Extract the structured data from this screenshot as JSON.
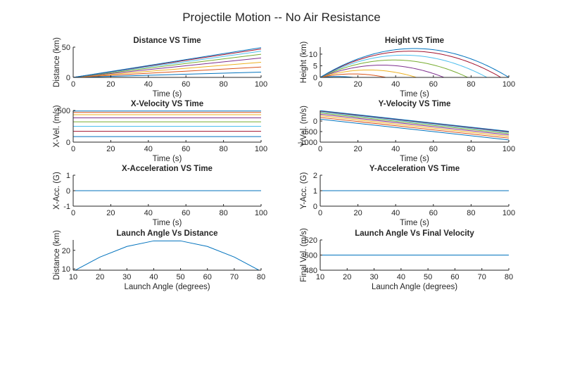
{
  "figure": {
    "suptitle": "Projectile Motion -- No Air Resistance"
  },
  "colors": [
    "#0072BD",
    "#D95319",
    "#EDB120",
    "#7E2F8E",
    "#77AC30",
    "#4DBEEE",
    "#A2142F",
    "#0072BD"
  ],
  "chart_data": [
    {
      "id": "distance-vs-time",
      "type": "line",
      "title": "Distance VS Time",
      "xlabel": "Time (s)",
      "ylabel": "Distance (km)",
      "xlim": [
        0,
        100
      ],
      "ylim": [
        0,
        50
      ],
      "xticks": [
        0,
        20,
        40,
        60,
        80,
        100
      ],
      "yticks": [
        0,
        50
      ],
      "grid": false,
      "series": [
        {
          "x": [
            0,
            100
          ],
          "y": [
            0,
            8.7
          ]
        },
        {
          "x": [
            0,
            100
          ],
          "y": [
            0,
            17.1
          ]
        },
        {
          "x": [
            0,
            100
          ],
          "y": [
            0,
            25
          ]
        },
        {
          "x": [
            0,
            100
          ],
          "y": [
            0,
            32.1
          ]
        },
        {
          "x": [
            0,
            100
          ],
          "y": [
            0,
            38.3
          ]
        },
        {
          "x": [
            0,
            100
          ],
          "y": [
            0,
            43.3
          ]
        },
        {
          "x": [
            0,
            100
          ],
          "y": [
            0,
            47
          ]
        },
        {
          "x": [
            0,
            100
          ],
          "y": [
            0,
            49.2
          ]
        }
      ]
    },
    {
      "id": "height-vs-time",
      "type": "line",
      "title": "Height VS Time",
      "xlabel": "Time (s)",
      "ylabel": "Height (km)",
      "xlim": [
        0,
        100
      ],
      "ylim": [
        0,
        13
      ],
      "xticks": [
        0,
        20,
        40,
        60,
        80,
        100
      ],
      "yticks": [
        0,
        5,
        10
      ],
      "grid": false,
      "series": [
        {
          "x": [
            0,
            17.7
          ],
          "y": [
            0,
            0.38
          ],
          "peak": 8.9
        },
        {
          "x": [
            0,
            34.9
          ],
          "y": [
            0,
            1.49
          ],
          "peak": 17.4
        },
        {
          "x": [
            0,
            51
          ],
          "y": [
            0,
            3.19
          ],
          "peak": 25.5
        },
        {
          "x": [
            0,
            65.5
          ],
          "y": [
            0,
            5.27
          ],
          "peak": 32.8
        },
        {
          "x": [
            0,
            78.1
          ],
          "y": [
            0,
            7.47
          ],
          "peak": 39.1
        },
        {
          "x": [
            0,
            88.3
          ],
          "y": [
            0,
            9.56
          ],
          "peak": 44.2
        },
        {
          "x": [
            0,
            95.9
          ],
          "y": [
            0,
            11.27
          ],
          "peak": 47.9
        },
        {
          "x": [
            0,
            100
          ],
          "y": [
            0,
            12.4
          ],
          "peak": 50
        }
      ]
    },
    {
      "id": "x-velocity-vs-time",
      "type": "line",
      "title": "X-Velocity VS Time",
      "xlabel": "Time (s)",
      "ylabel": "X-Vel. (m/s)",
      "xlim": [
        0,
        100
      ],
      "ylim": [
        0,
        500
      ],
      "xticks": [
        0,
        20,
        40,
        60,
        80,
        100
      ],
      "yticks": [
        0,
        500
      ],
      "grid": false,
      "series": [
        {
          "x": [
            0,
            100
          ],
          "y": [
            492,
            492
          ]
        },
        {
          "x": [
            0,
            100
          ],
          "y": [
            470,
            470
          ]
        },
        {
          "x": [
            0,
            100
          ],
          "y": [
            433,
            433
          ]
        },
        {
          "x": [
            0,
            100
          ],
          "y": [
            383,
            383
          ]
        },
        {
          "x": [
            0,
            100
          ],
          "y": [
            321,
            321
          ]
        },
        {
          "x": [
            0,
            100
          ],
          "y": [
            250,
            250
          ]
        },
        {
          "x": [
            0,
            100
          ],
          "y": [
            171,
            171
          ]
        },
        {
          "x": [
            0,
            100
          ],
          "y": [
            87,
            87
          ]
        }
      ]
    },
    {
      "id": "y-velocity-vs-time",
      "type": "line",
      "title": "Y-Velocity VS Time",
      "xlabel": "Time (s)",
      "ylabel": "Y-Vel. (m/s)",
      "xlim": [
        0,
        100
      ],
      "ylim": [
        -1000,
        500
      ],
      "xticks": [
        0,
        20,
        40,
        60,
        80,
        100
      ],
      "yticks": [
        -1000,
        -500,
        0
      ],
      "grid": false,
      "series": [
        {
          "x": [
            0,
            100
          ],
          "y": [
            87,
            -894
          ]
        },
        {
          "x": [
            0,
            100
          ],
          "y": [
            171,
            -810
          ]
        },
        {
          "x": [
            0,
            100
          ],
          "y": [
            250,
            -731
          ]
        },
        {
          "x": [
            0,
            100
          ],
          "y": [
            321,
            -660
          ]
        },
        {
          "x": [
            0,
            100
          ],
          "y": [
            383,
            -598
          ]
        },
        {
          "x": [
            0,
            100
          ],
          "y": [
            433,
            -548
          ]
        },
        {
          "x": [
            0,
            100
          ],
          "y": [
            470,
            -511
          ]
        },
        {
          "x": [
            0,
            100
          ],
          "y": [
            492,
            -489
          ]
        }
      ]
    },
    {
      "id": "x-acceleration-vs-time",
      "type": "line",
      "title": "X-Acceleration VS Time",
      "xlabel": "Time (s)",
      "ylabel": "X-Acc. (G)",
      "xlim": [
        0,
        100
      ],
      "ylim": [
        -1,
        1
      ],
      "xticks": [
        0,
        20,
        40,
        60,
        80,
        100
      ],
      "yticks": [
        -1,
        0,
        1
      ],
      "grid": false,
      "series": [
        {
          "x": [
            0,
            100
          ],
          "y": [
            0,
            0
          ]
        }
      ]
    },
    {
      "id": "y-acceleration-vs-time",
      "type": "line",
      "title": "Y-Acceleration VS Time",
      "xlabel": "Time (s)",
      "ylabel": "Y-Acc. (G)",
      "xlim": [
        0,
        100
      ],
      "ylim": [
        0,
        2
      ],
      "xticks": [
        0,
        20,
        40,
        60,
        80,
        100
      ],
      "yticks": [
        0,
        1,
        2
      ],
      "grid": false,
      "series": [
        {
          "x": [
            0,
            100
          ],
          "y": [
            1,
            1
          ]
        }
      ]
    },
    {
      "id": "launch-angle-vs-distance",
      "type": "line",
      "title": "Launch Angle Vs Distance",
      "xlabel": "Launch Angle (degrees)",
      "ylabel": "Distance (km)",
      "xlim": [
        10,
        80
      ],
      "ylim": [
        9.3,
        25.6
      ],
      "xticks": [
        10,
        20,
        30,
        40,
        50,
        60,
        70,
        80
      ],
      "yticks": [
        10,
        20
      ],
      "grid": false,
      "series": [
        {
          "x": [
            10,
            20,
            30,
            40,
            50,
            60,
            70,
            80
          ],
          "y": [
            8.7,
            16.4,
            22.1,
            25.1,
            25.1,
            22.1,
            16.4,
            8.7
          ]
        }
      ]
    },
    {
      "id": "launch-angle-vs-final-velocity",
      "type": "line",
      "title": "Launch Angle Vs Final Velocity",
      "xlabel": "Launch Angle (degrees)",
      "ylabel": "Final Vel. (m/s)",
      "xlim": [
        10,
        80
      ],
      "ylim": [
        480,
        520
      ],
      "xticks": [
        10,
        20,
        30,
        40,
        50,
        60,
        70,
        80
      ],
      "yticks": [
        480,
        500,
        520
      ],
      "grid": false,
      "series": [
        {
          "x": [
            10,
            20,
            30,
            40,
            50,
            60,
            70,
            80
          ],
          "y": [
            500,
            500,
            500,
            500,
            500,
            500,
            500,
            500
          ]
        }
      ]
    }
  ]
}
